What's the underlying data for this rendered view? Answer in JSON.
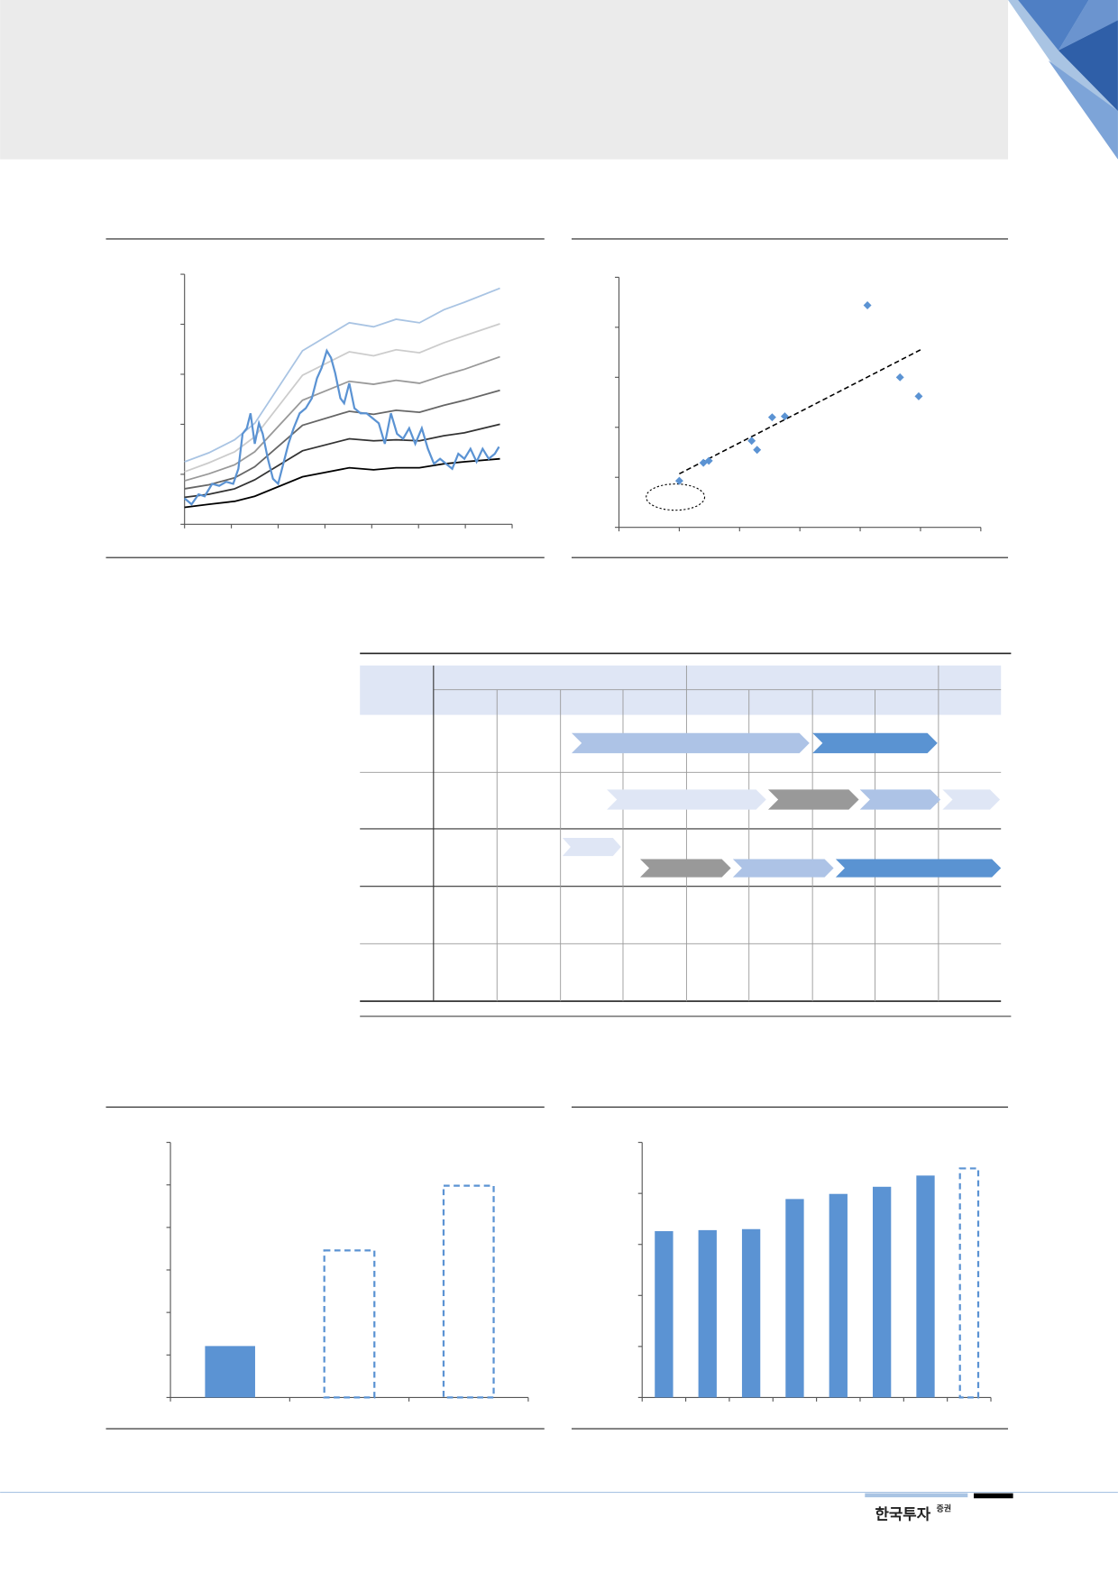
{
  "logo": {
    "name": "한국투자",
    "suffix": "증권"
  },
  "chart_data": [
    {
      "type": "line",
      "xlim": [
        0,
        7
      ],
      "xticks": [
        0,
        1,
        2,
        3,
        4,
        5,
        6,
        7
      ],
      "ylim": [
        0,
        5
      ],
      "yticks": [
        0,
        1,
        2,
        3,
        4,
        5
      ],
      "series": [
        {
          "color": "#a9c4e3",
          "x": [
            0,
            0.52,
            1.07,
            1.5,
            2.52,
            3.52,
            4.04,
            4.52,
            5.02,
            5.54,
            5.98,
            6.74
          ],
          "values": [
            1.25,
            1.43,
            1.69,
            2.02,
            3.47,
            4.03,
            3.95,
            4.1,
            4.03,
            4.29,
            4.44,
            4.72
          ]
        },
        {
          "color": "#cccccc",
          "x": [
            0,
            0.52,
            1.07,
            1.5,
            2.52,
            3.52,
            4.04,
            4.52,
            5.02,
            5.54,
            5.98,
            6.74
          ],
          "values": [
            1.05,
            1.23,
            1.45,
            1.75,
            2.98,
            3.45,
            3.37,
            3.49,
            3.43,
            3.63,
            3.77,
            4.01
          ]
        },
        {
          "color": "#999999",
          "x": [
            0,
            0.52,
            1.07,
            1.5,
            2.52,
            3.52,
            4.04,
            4.52,
            5.02,
            5.54,
            5.98,
            6.74
          ],
          "values": [
            0.87,
            1.01,
            1.19,
            1.45,
            2.48,
            2.86,
            2.8,
            2.88,
            2.82,
            2.98,
            3.1,
            3.35
          ]
        },
        {
          "color": "#666666",
          "x": [
            0,
            0.52,
            1.07,
            1.5,
            2.52,
            3.52,
            4.04,
            4.52,
            5.02,
            5.54,
            5.98,
            6.74
          ],
          "values": [
            0.71,
            0.79,
            0.93,
            1.15,
            1.98,
            2.26,
            2.2,
            2.28,
            2.24,
            2.38,
            2.48,
            2.68
          ]
        },
        {
          "color": "#333333",
          "x": [
            0,
            0.52,
            1.07,
            1.5,
            2.52,
            3.52,
            4.04,
            4.52,
            5.02,
            5.54,
            5.98,
            6.74
          ],
          "values": [
            0.54,
            0.6,
            0.71,
            0.89,
            1.47,
            1.71,
            1.67,
            1.69,
            1.67,
            1.77,
            1.83,
            2.0
          ]
        },
        {
          "color": "#000000",
          "x": [
            0,
            0.52,
            1.07,
            1.5,
            2.52,
            3.52,
            4.04,
            4.52,
            5.02,
            5.54,
            5.98,
            6.74
          ],
          "values": [
            0.34,
            0.4,
            0.46,
            0.56,
            0.95,
            1.13,
            1.09,
            1.13,
            1.13,
            1.21,
            1.25,
            1.31
          ]
        },
        {
          "color": "#5b93d3",
          "x": [
            0,
            0.15,
            0.3,
            0.43,
            0.59,
            0.74,
            0.89,
            1.04,
            1.15,
            1.24,
            1.33,
            1.41,
            1.5,
            1.59,
            1.67,
            1.78,
            1.89,
            2.0,
            2.11,
            2.22,
            2.33,
            2.46,
            2.59,
            2.72,
            2.83,
            2.93,
            3.04,
            3.13,
            3.22,
            3.33,
            3.41,
            3.52,
            3.63,
            3.76,
            3.89,
            4.02,
            4.15,
            4.28,
            4.41,
            4.54,
            4.67,
            4.8,
            4.93,
            5.07,
            5.2,
            5.33,
            5.46,
            5.59,
            5.72,
            5.85,
            5.98,
            6.11,
            6.24,
            6.37,
            6.5,
            6.63,
            6.72
          ],
          "values": [
            0.52,
            0.4,
            0.6,
            0.56,
            0.81,
            0.77,
            0.85,
            0.81,
            1.11,
            1.81,
            1.92,
            2.22,
            1.61,
            2.02,
            1.81,
            1.31,
            0.91,
            0.81,
            1.21,
            1.61,
            1.92,
            2.22,
            2.32,
            2.52,
            2.92,
            3.13,
            3.47,
            3.33,
            3.02,
            2.52,
            2.42,
            2.82,
            2.32,
            2.22,
            2.22,
            2.12,
            2.02,
            1.61,
            2.22,
            1.81,
            1.71,
            1.92,
            1.61,
            1.92,
            1.51,
            1.21,
            1.31,
            1.21,
            1.11,
            1.41,
            1.31,
            1.51,
            1.25,
            1.51,
            1.31,
            1.41,
            1.55
          ]
        }
      ]
    },
    {
      "type": "scatter",
      "xlim": [
        0,
        6
      ],
      "xticks": [
        0,
        1,
        2,
        3,
        4,
        5,
        6
      ],
      "ylim": [
        0,
        5
      ],
      "yticks": [
        0,
        1,
        2,
        3,
        4,
        5
      ],
      "color": "#5b93d3",
      "x": [
        1.0,
        1.4,
        1.49,
        2.2,
        2.29,
        2.54,
        2.75,
        4.12,
        4.66,
        4.97
      ],
      "values": [
        0.93,
        1.29,
        1.33,
        1.73,
        1.55,
        2.2,
        2.22,
        4.44,
        3.0,
        2.62
      ],
      "trendline": {
        "x": [
          1.0,
          5.0
        ],
        "values": [
          1.07,
          3.55
        ],
        "color": "#000000"
      }
    },
    {
      "type": "bar",
      "categories": [
        null,
        null,
        null
      ],
      "values": [
        1.21,
        3.46,
        4.98
      ],
      "color": "#5b93d3",
      "bar_styles": [
        "solid",
        "dashed",
        "dashed"
      ],
      "ylim": [
        0,
        6
      ],
      "yticks": [
        0,
        1,
        2,
        3,
        4,
        5,
        6
      ]
    },
    {
      "type": "bar",
      "categories": [
        null,
        null,
        null,
        null,
        null,
        null,
        null,
        null
      ],
      "values": [
        3.26,
        3.28,
        3.3,
        3.89,
        3.99,
        4.13,
        4.35,
        4.49
      ],
      "color": "#5b93d3",
      "bar_styles": [
        "solid",
        "solid",
        "solid",
        "solid",
        "solid",
        "solid",
        "solid",
        "dashed"
      ],
      "ylim": [
        0,
        5
      ],
      "yticks": [
        0,
        1,
        2,
        3,
        4,
        5
      ]
    }
  ]
}
